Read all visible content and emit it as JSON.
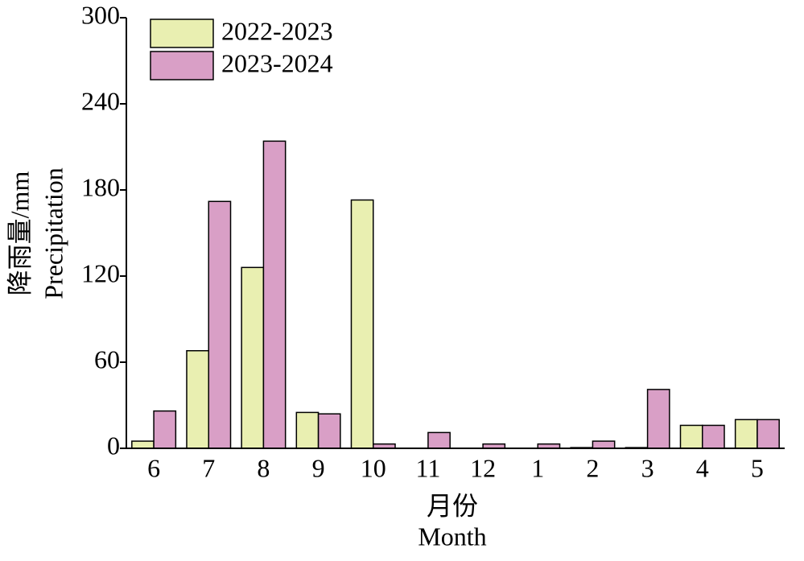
{
  "chart_data": {
    "type": "bar",
    "categories": [
      "6",
      "7",
      "8",
      "9",
      "10",
      "11",
      "12",
      "1",
      "2",
      "3",
      "4",
      "5"
    ],
    "series": [
      {
        "name": "2022-2023",
        "color": "#e9efb1",
        "values": [
          5,
          68,
          126,
          25,
          173,
          0,
          0,
          0,
          0.5,
          0.5,
          16,
          20
        ]
      },
      {
        "name": "2023-2024",
        "color": "#d99fc6",
        "values": [
          26,
          172,
          214,
          24,
          3,
          11,
          3,
          3,
          5,
          41,
          16,
          20
        ]
      }
    ],
    "xlabel": [
      "月份",
      "Month"
    ],
    "ylabel": [
      "降雨量/mm",
      "Precipitation"
    ],
    "ylim": [
      0,
      300
    ],
    "yticks": [
      0,
      60,
      120,
      180,
      240,
      300
    ],
    "legend": "top-left"
  }
}
